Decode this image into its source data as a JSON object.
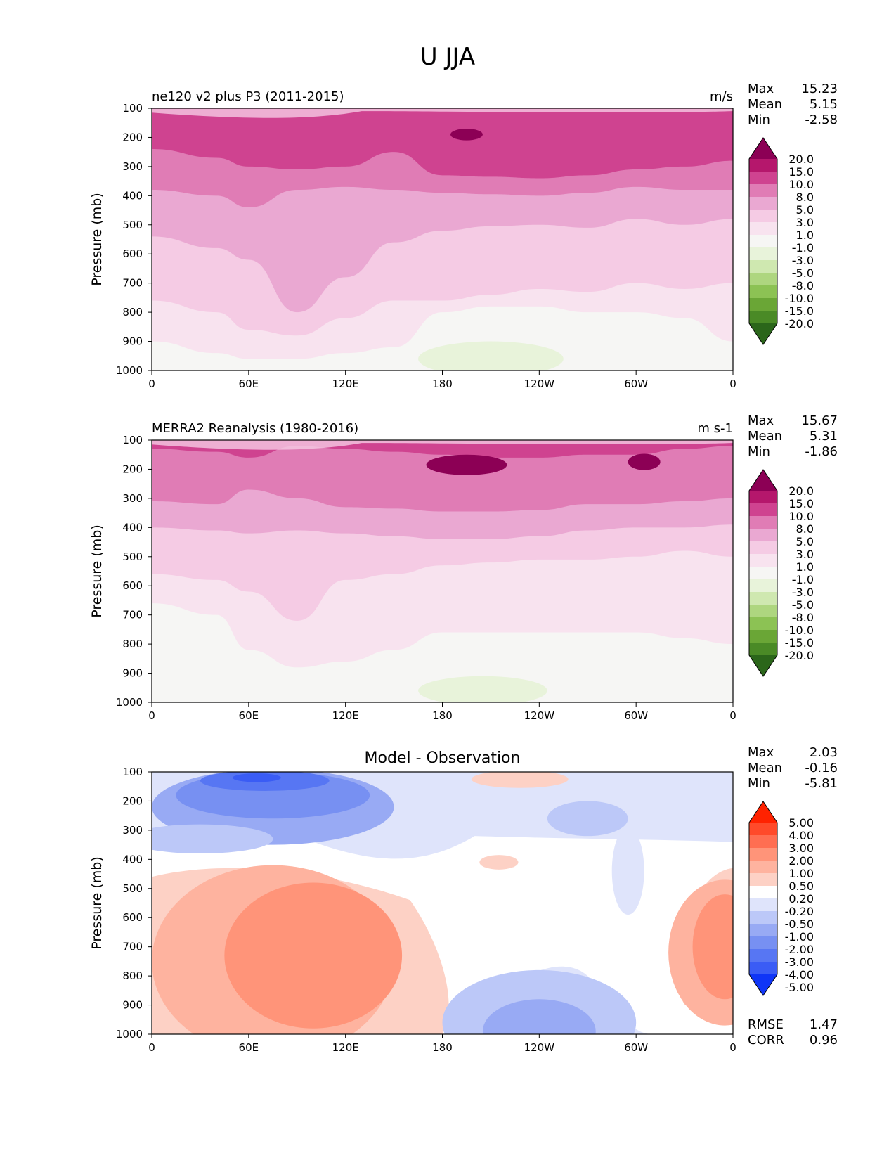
{
  "figure_title": "U JJA",
  "colors": {
    "main": [
      "#8c0055",
      "#b5176c",
      "#cf4390",
      "#e07cb5",
      "#eaa8d2",
      "#f5cbe4",
      "#f8e3ef",
      "#f6f6f4",
      "#e8f3da",
      "#cfe8b0",
      "#aed67f",
      "#8cc254",
      "#6aa636",
      "#4a8a26",
      "#2b661a"
    ],
    "diff": [
      "#ff2200",
      "#ff4a2a",
      "#ff6e52",
      "#ff9479",
      "#feb39f",
      "#fdd1c5",
      "#ffffff",
      "#dfe4fb",
      "#bcc8f8",
      "#98aaf4",
      "#7790f2",
      "#5776f3",
      "#3a5cf5",
      "#0f35f7"
    ]
  },
  "main_levels": [
    "20.0",
    "15.0",
    "10.0",
    "8.0",
    "5.0",
    "3.0",
    "1.0",
    "-1.0",
    "-3.0",
    "-5.0",
    "-8.0",
    "-10.0",
    "-15.0",
    "-20.0"
  ],
  "diff_levels": [
    "5.00",
    "4.00",
    "3.00",
    "2.00",
    "1.00",
    "0.50",
    "0.20",
    "-0.20",
    "-0.50",
    "-1.00",
    "-2.00",
    "-3.00",
    "-4.00",
    "-5.00"
  ],
  "chart_data": [
    {
      "type": "contour",
      "title": "ne120 v2 plus P3 (2011-2015)",
      "units": "m/s",
      "xlabel": "",
      "ylabel": "Pressure (mb)",
      "x_ticks": [
        "0",
        "60E",
        "120E",
        "180",
        "120W",
        "60W",
        "0"
      ],
      "y_ticks": [
        "100",
        "200",
        "300",
        "400",
        "500",
        "600",
        "700",
        "800",
        "900",
        "1000"
      ],
      "ylim": [
        1000,
        100
      ],
      "stats": {
        "max_label": "Max",
        "max": "15.23",
        "mean_label": "Mean",
        "mean": "5.15",
        "min_label": "Min",
        "min": "-2.58"
      },
      "bands": [
        {
          "level_index": 1,
          "cx": [
            0,
            40,
            60,
            90,
            120,
            150,
            180,
            210,
            240,
            270,
            300,
            330,
            360
          ],
          "p": [
            240,
            270,
            300,
            310,
            300,
            250,
            330,
            335,
            340,
            330,
            310,
            300,
            280
          ]
        },
        {
          "level_index": 2,
          "cx": [
            0,
            40,
            60,
            90,
            120,
            150,
            180,
            210,
            240,
            270,
            300,
            330,
            360
          ],
          "p": [
            380,
            400,
            440,
            380,
            370,
            380,
            390,
            395,
            400,
            390,
            370,
            380,
            380
          ]
        },
        {
          "level_index": 3,
          "cx": [
            0,
            40,
            60,
            90,
            120,
            150,
            180,
            210,
            240,
            270,
            300,
            330,
            360
          ],
          "p": [
            540,
            580,
            620,
            800,
            680,
            560,
            520,
            505,
            500,
            510,
            480,
            500,
            480
          ]
        },
        {
          "level_index": 4,
          "cx": [
            0,
            40,
            60,
            90,
            120,
            150,
            180,
            210,
            240,
            270,
            300,
            330,
            360
          ],
          "p": [
            760,
            800,
            860,
            880,
            820,
            760,
            760,
            740,
            720,
            730,
            700,
            720,
            700
          ]
        },
        {
          "level_index": 5,
          "cx": [
            0,
            40,
            60,
            90,
            120,
            150,
            180,
            210,
            240,
            270,
            300,
            330,
            360
          ],
          "p": [
            900,
            940,
            960,
            960,
            940,
            920,
            800,
            780,
            780,
            800,
            800,
            820,
            900
          ]
        }
      ],
      "patches": [
        {
          "level_index": 0,
          "lon": 195,
          "p": 190,
          "rlon": 10,
          "rp": 20
        },
        {
          "level_index": 8,
          "lon": 210,
          "p": 960,
          "rlon": 45,
          "rp": 60
        }
      ]
    },
    {
      "type": "contour",
      "title": "MERRA2 Reanalysis (1980-2016)",
      "units": "m s-1",
      "xlabel": "",
      "ylabel": "Pressure (mb)",
      "x_ticks": [
        "0",
        "60E",
        "120E",
        "180",
        "120W",
        "60W",
        "0"
      ],
      "y_ticks": [
        "100",
        "200",
        "300",
        "400",
        "500",
        "600",
        "700",
        "800",
        "900",
        "1000"
      ],
      "ylim": [
        1000,
        100
      ],
      "stats": {
        "max_label": "Max",
        "max": "15.67",
        "mean_label": "Mean",
        "mean": "5.31",
        "min_label": "Min",
        "min": "-1.86"
      },
      "bands": [
        {
          "level_index": 1,
          "cx": [
            0,
            40,
            60,
            90,
            120,
            150,
            180,
            210,
            240,
            270,
            300,
            330,
            360
          ],
          "p": [
            130,
            140,
            160,
            120,
            130,
            140,
            150,
            160,
            160,
            150,
            150,
            130,
            120
          ]
        },
        {
          "level_index": 2,
          "cx": [
            0,
            40,
            60,
            90,
            120,
            150,
            180,
            210,
            240,
            270,
            300,
            330,
            360
          ],
          "p": [
            310,
            320,
            270,
            300,
            330,
            335,
            345,
            345,
            340,
            320,
            320,
            310,
            300
          ]
        },
        {
          "level_index": 3,
          "cx": [
            0,
            40,
            60,
            90,
            120,
            150,
            180,
            210,
            240,
            270,
            300,
            330,
            360
          ],
          "p": [
            400,
            410,
            420,
            410,
            420,
            430,
            440,
            440,
            430,
            410,
            400,
            400,
            390
          ]
        },
        {
          "level_index": 4,
          "cx": [
            0,
            40,
            60,
            90,
            120,
            150,
            180,
            210,
            240,
            270,
            300,
            330,
            360
          ],
          "p": [
            560,
            580,
            620,
            720,
            580,
            560,
            530,
            520,
            510,
            510,
            500,
            480,
            500
          ]
        },
        {
          "level_index": 5,
          "cx": [
            0,
            40,
            60,
            90,
            120,
            150,
            180,
            210,
            240,
            270,
            300,
            330,
            360
          ],
          "p": [
            660,
            700,
            820,
            880,
            860,
            820,
            760,
            760,
            760,
            760,
            760,
            780,
            800
          ]
        }
      ],
      "patches": [
        {
          "level_index": 0,
          "lon": 195,
          "p": 185,
          "rlon": 25,
          "rp": 35
        },
        {
          "level_index": 0,
          "lon": 305,
          "p": 175,
          "rlon": 10,
          "rp": 28
        },
        {
          "level_index": 8,
          "lon": 205,
          "p": 960,
          "rlon": 40,
          "rp": 50
        }
      ]
    },
    {
      "type": "contour",
      "title": "Model - Observation",
      "units": "",
      "xlabel": "",
      "ylabel": "Pressure (mb)",
      "x_ticks": [
        "0",
        "60E",
        "120E",
        "180",
        "120W",
        "60W",
        "0"
      ],
      "y_ticks": [
        "100",
        "200",
        "300",
        "400",
        "500",
        "600",
        "700",
        "800",
        "900",
        "1000"
      ],
      "ylim": [
        1000,
        100
      ],
      "stats": {
        "max_label": "Max",
        "max": "2.03",
        "mean_label": "Mean",
        "mean": "-0.16",
        "min_label": "Min",
        "min": "-5.81"
      },
      "extra_stats": {
        "rmse_label": "RMSE",
        "rmse": "1.47",
        "corr_label": "CORR",
        "corr": "0.96"
      },
      "patches": [
        {
          "level_index": 9,
          "lon": 75,
          "p": 220,
          "rlon": 75,
          "rp": 130
        },
        {
          "level_index": 10,
          "lon": 75,
          "p": 180,
          "rlon": 60,
          "rp": 80
        },
        {
          "level_index": 11,
          "lon": 70,
          "p": 130,
          "rlon": 40,
          "rp": 35
        },
        {
          "level_index": 12,
          "lon": 65,
          "p": 120,
          "rlon": 15,
          "rp": 15
        },
        {
          "level_index": 8,
          "lon": 30,
          "p": 330,
          "rlon": 45,
          "rp": 50
        },
        {
          "level_index": 4,
          "lon": 75,
          "p": 750,
          "rlon": 75,
          "rp": 330
        },
        {
          "level_index": 3,
          "lon": 100,
          "p": 730,
          "rlon": 55,
          "rp": 250
        },
        {
          "level_index": 4,
          "lon": 355,
          "p": 720,
          "rlon": 35,
          "rp": 250
        },
        {
          "level_index": 3,
          "lon": 355,
          "p": 700,
          "rlon": 20,
          "rp": 180
        },
        {
          "level_index": 8,
          "lon": 240,
          "p": 960,
          "rlon": 60,
          "rp": 180
        },
        {
          "level_index": 9,
          "lon": 240,
          "p": 990,
          "rlon": 35,
          "rp": 110
        },
        {
          "level_index": 5,
          "lon": 228,
          "p": 125,
          "rlon": 30,
          "rp": 30
        },
        {
          "level_index": 5,
          "lon": 215,
          "p": 410,
          "rlon": 12,
          "rp": 25
        },
        {
          "level_index": 8,
          "lon": 270,
          "p": 260,
          "rlon": 25,
          "rp": 60
        },
        {
          "level_index": 7,
          "lon": 295,
          "p": 440,
          "rlon": 10,
          "rp": 150
        }
      ],
      "bands": []
    }
  ]
}
